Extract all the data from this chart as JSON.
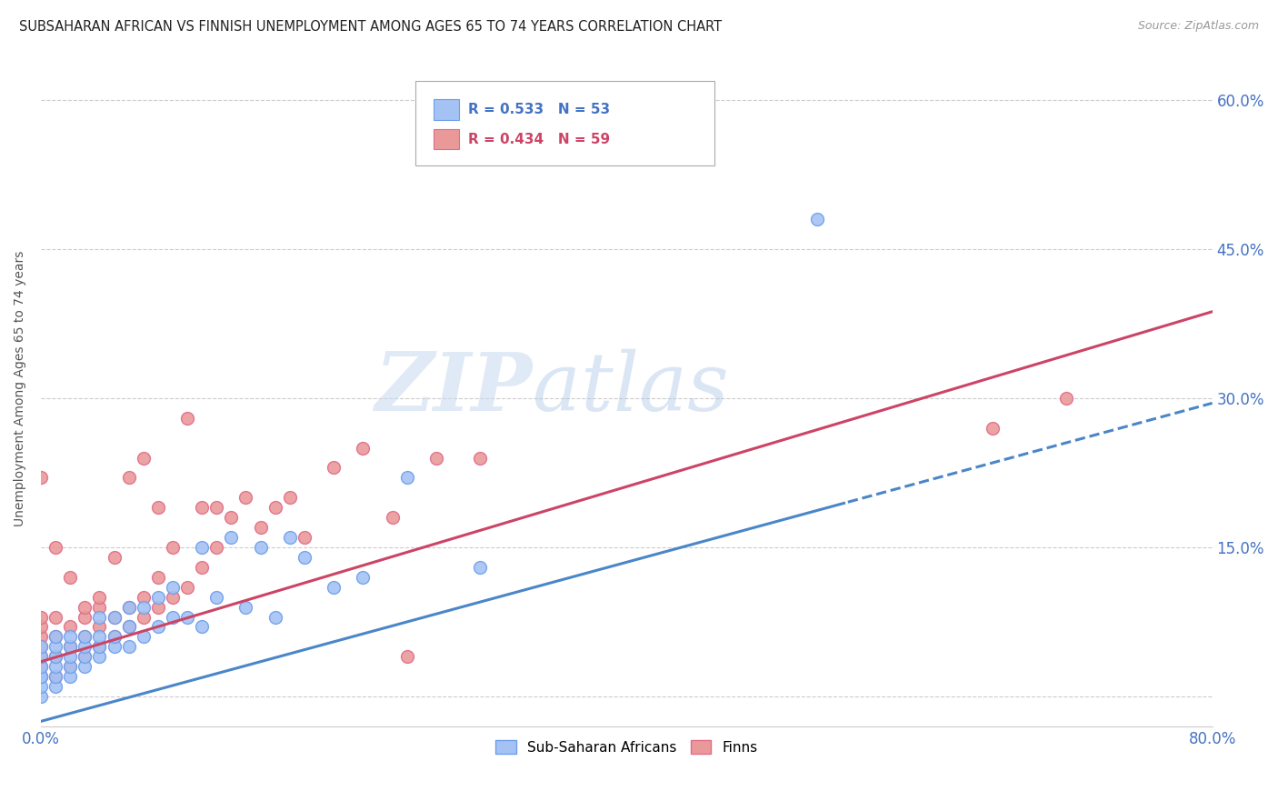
{
  "title": "SUBSAHARAN AFRICAN VS FINNISH UNEMPLOYMENT AMONG AGES 65 TO 74 YEARS CORRELATION CHART",
  "source": "Source: ZipAtlas.com",
  "ylabel": "Unemployment Among Ages 65 to 74 years",
  "xlim": [
    0.0,
    0.8
  ],
  "ylim": [
    -0.03,
    0.65
  ],
  "xticks": [
    0.0,
    0.1,
    0.2,
    0.3,
    0.4,
    0.5,
    0.6,
    0.7,
    0.8
  ],
  "xticklabels": [
    "0.0%",
    "",
    "",
    "",
    "",
    "",
    "",
    "",
    "80.0%"
  ],
  "ytick_positions": [
    0.0,
    0.15,
    0.3,
    0.45,
    0.6
  ],
  "blue_R": "0.533",
  "blue_N": "53",
  "pink_R": "0.434",
  "pink_N": "59",
  "blue_color": "#a4c2f4",
  "pink_color": "#ea9999",
  "blue_edge_color": "#6d9eeb",
  "pink_edge_color": "#e06c8a",
  "blue_line_color": "#4a86c8",
  "pink_line_color": "#cc4466",
  "tick_color": "#4472c4",
  "watermark_zip": "ZIP",
  "watermark_atlas": "atlas",
  "legend_label1": "Sub-Saharan Africans",
  "legend_label2": "Finns",
  "blue_scatter_x": [
    0.0,
    0.0,
    0.0,
    0.0,
    0.0,
    0.0,
    0.0,
    0.01,
    0.01,
    0.01,
    0.01,
    0.01,
    0.01,
    0.02,
    0.02,
    0.02,
    0.02,
    0.02,
    0.03,
    0.03,
    0.03,
    0.03,
    0.04,
    0.04,
    0.04,
    0.04,
    0.05,
    0.05,
    0.05,
    0.06,
    0.06,
    0.06,
    0.07,
    0.07,
    0.08,
    0.08,
    0.09,
    0.09,
    0.1,
    0.11,
    0.11,
    0.12,
    0.13,
    0.14,
    0.15,
    0.16,
    0.17,
    0.18,
    0.2,
    0.22,
    0.25,
    0.3,
    0.53
  ],
  "blue_scatter_y": [
    0.0,
    0.01,
    0.02,
    0.02,
    0.03,
    0.04,
    0.05,
    0.01,
    0.02,
    0.03,
    0.04,
    0.05,
    0.06,
    0.02,
    0.03,
    0.04,
    0.05,
    0.06,
    0.03,
    0.04,
    0.05,
    0.06,
    0.04,
    0.05,
    0.06,
    0.08,
    0.05,
    0.06,
    0.08,
    0.05,
    0.07,
    0.09,
    0.06,
    0.09,
    0.07,
    0.1,
    0.08,
    0.11,
    0.08,
    0.07,
    0.15,
    0.1,
    0.16,
    0.09,
    0.15,
    0.08,
    0.16,
    0.14,
    0.11,
    0.12,
    0.22,
    0.13,
    0.48
  ],
  "pink_scatter_x": [
    0.0,
    0.0,
    0.0,
    0.0,
    0.0,
    0.0,
    0.0,
    0.0,
    0.01,
    0.01,
    0.01,
    0.01,
    0.01,
    0.02,
    0.02,
    0.02,
    0.02,
    0.03,
    0.03,
    0.03,
    0.03,
    0.04,
    0.04,
    0.04,
    0.04,
    0.05,
    0.05,
    0.05,
    0.06,
    0.06,
    0.06,
    0.07,
    0.07,
    0.07,
    0.08,
    0.08,
    0.08,
    0.09,
    0.09,
    0.1,
    0.1,
    0.11,
    0.11,
    0.12,
    0.12,
    0.13,
    0.14,
    0.15,
    0.16,
    0.17,
    0.18,
    0.2,
    0.22,
    0.24,
    0.25,
    0.27,
    0.3,
    0.65,
    0.7
  ],
  "pink_scatter_y": [
    0.02,
    0.03,
    0.04,
    0.05,
    0.06,
    0.07,
    0.08,
    0.22,
    0.02,
    0.04,
    0.06,
    0.08,
    0.15,
    0.03,
    0.05,
    0.07,
    0.12,
    0.04,
    0.06,
    0.08,
    0.09,
    0.05,
    0.07,
    0.09,
    0.1,
    0.06,
    0.08,
    0.14,
    0.07,
    0.09,
    0.22,
    0.08,
    0.1,
    0.24,
    0.09,
    0.12,
    0.19,
    0.1,
    0.15,
    0.11,
    0.28,
    0.13,
    0.19,
    0.15,
    0.19,
    0.18,
    0.2,
    0.17,
    0.19,
    0.2,
    0.16,
    0.23,
    0.25,
    0.18,
    0.04,
    0.24,
    0.24,
    0.27,
    0.3
  ]
}
